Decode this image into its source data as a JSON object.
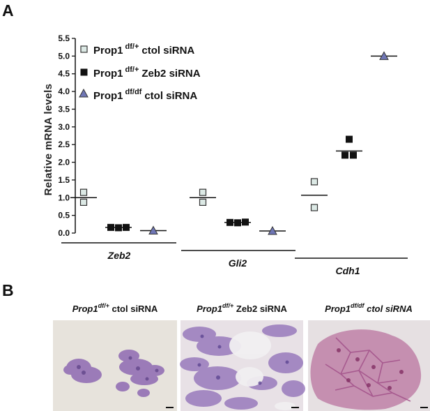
{
  "panel_a": {
    "label": "A",
    "legend": [
      {
        "prefix": "Prop1",
        "sup": "df/+",
        "suffix": "ctol siRNA"
      },
      {
        "prefix": "Prop1",
        "sup": "df/+",
        "suffix": "Zeb2 siRNA"
      },
      {
        "prefix": "Prop1",
        "sup": "df/df",
        "suffix": "ctol siRNA"
      }
    ]
  },
  "chart_data": {
    "type": "scatter",
    "ylabel": "Relative mRNA levels",
    "ylim": [
      0,
      5.5
    ],
    "yticks": [
      "0.0",
      "0.5",
      "1.0",
      "1.5",
      "2.0",
      "2.5",
      "3.0",
      "3.5",
      "4.0",
      "4.5",
      "5.0",
      "5.5"
    ],
    "categories": [
      "Zeb2",
      "Gli2",
      "Cdh1"
    ],
    "marker_colors": {
      "open_square": "#dce9e5",
      "filled_square": "#111111",
      "triangle": "#6f76b5"
    },
    "series": [
      {
        "name": "Prop1 df/+ ctol siRNA",
        "marker": "open-square",
        "points": [
          {
            "category": "Zeb2",
            "values": [
              1.15,
              0.87
            ],
            "mean": 1.0
          },
          {
            "category": "Gli2",
            "values": [
              1.15,
              0.87
            ],
            "mean": 1.0
          },
          {
            "category": "Cdh1",
            "values": [
              1.45,
              0.72
            ],
            "mean": 1.07
          }
        ]
      },
      {
        "name": "Prop1 df/+ Zeb2 siRNA",
        "marker": "filled-square",
        "points": [
          {
            "category": "Zeb2",
            "values": [
              0.16,
              0.15,
              0.16
            ],
            "mean": 0.16
          },
          {
            "category": "Gli2",
            "values": [
              0.3,
              0.29,
              0.31
            ],
            "mean": 0.3
          },
          {
            "category": "Cdh1",
            "values": [
              2.65,
              2.2,
              2.2
            ],
            "mean": 2.32
          }
        ]
      },
      {
        "name": "Prop1 df/df ctol siRNA",
        "marker": "triangle",
        "points": [
          {
            "category": "Zeb2",
            "values": [
              0.07
            ],
            "mean": 0.07
          },
          {
            "category": "Gli2",
            "values": [
              0.06
            ],
            "mean": 0.06
          },
          {
            "category": "Cdh1",
            "values": [
              5.0
            ],
            "mean": 5.0
          }
        ]
      }
    ]
  },
  "panel_b": {
    "label": "B",
    "images": [
      {
        "caption_prefix": "Prop1",
        "caption_sup": "df/+",
        "caption_suffix": " ctol siRNA",
        "suffix_italic": false,
        "background": "#e7e3dc",
        "stain": "#8e69b2"
      },
      {
        "caption_prefix": "Prop1",
        "caption_sup": "df/+",
        "caption_suffix": " Zeb2 siRNA",
        "suffix_italic": false,
        "background": "#e8e1e6",
        "stain": "#8d6bb6"
      },
      {
        "caption_prefix": "Prop1",
        "caption_sup": "df/df",
        "caption_suffix": " ctol siRNA",
        "suffix_italic": true,
        "background": "#e6e0e2",
        "stain": "#a04d87"
      }
    ]
  }
}
